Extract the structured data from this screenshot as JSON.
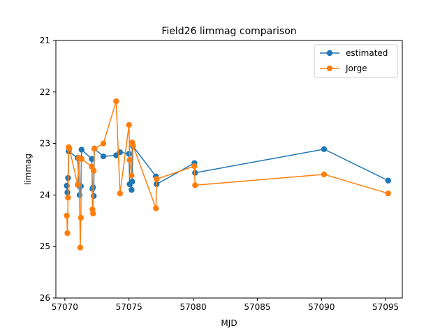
{
  "chart_data": {
    "type": "line",
    "title": "Field26 limmag comparison",
    "xlabel": "MJD",
    "ylabel": "limmag",
    "xlim": [
      56969.3,
      57096.3
    ],
    "ylim": [
      26,
      21
    ],
    "y_inverted": true,
    "xticks": [
      57070,
      57075,
      57080,
      57085,
      57090,
      57095
    ],
    "yticks": [
      21,
      22,
      23,
      24,
      25,
      26
    ],
    "grid": false,
    "legend_position": "top-right",
    "series": [
      {
        "name": "estimated",
        "color": "#1f77b4",
        "marker": "circle",
        "x": [
          57070.15,
          57070.2,
          57070.25,
          57070.3,
          57070.3,
          57071.0,
          57071.1,
          57071.15,
          57071.25,
          57071.3,
          57072.1,
          57072.15,
          57072.2,
          57072.25,
          57072.3,
          57073.0,
          57074.0,
          57074.3,
          57075.0,
          57075.05,
          57075.2,
          57075.25,
          57075.3,
          57077.1,
          57077.15,
          57080.1,
          57080.15,
          57090.2,
          57095.2
        ],
        "y": [
          23.82,
          23.95,
          23.67,
          23.15,
          23.15,
          23.28,
          23.82,
          24.0,
          23.83,
          23.12,
          23.3,
          23.88,
          23.85,
          24.02,
          23.1,
          23.25,
          23.23,
          23.17,
          23.2,
          23.79,
          23.9,
          23.74,
          23.05,
          23.64,
          23.79,
          23.38,
          23.57,
          23.11,
          23.72
        ]
      },
      {
        "name": "Jorge",
        "color": "#ff7f0e",
        "marker": "circle",
        "x": [
          57070.15,
          57070.2,
          57070.25,
          57070.3,
          57070.35,
          57071.0,
          57071.1,
          57071.2,
          57071.25,
          57071.3,
          57072.1,
          57072.15,
          57072.2,
          57072.25,
          57072.3,
          57073.0,
          57074.0,
          57074.3,
          57075.0,
          57075.05,
          57075.2,
          57075.25,
          57075.3,
          57077.1,
          57077.15,
          57080.1,
          57080.15,
          57090.2,
          57095.2
        ],
        "y": [
          24.4,
          24.74,
          24.05,
          23.07,
          23.1,
          23.8,
          23.28,
          25.02,
          24.44,
          23.3,
          23.45,
          24.28,
          24.36,
          23.53,
          23.1,
          23.0,
          22.18,
          23.97,
          22.64,
          23.32,
          23.62,
          22.98,
          23.03,
          24.26,
          23.69,
          23.44,
          23.81,
          23.6,
          23.97
        ]
      }
    ]
  }
}
